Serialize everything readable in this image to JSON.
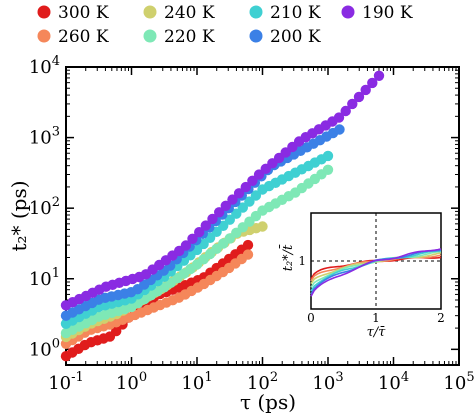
{
  "chart_data": {
    "type": "scatter",
    "xlabel": "τ (ps)",
    "ylabel": "t₂* (ps)",
    "xscale": "log",
    "yscale": "log",
    "xlim": [
      0.1,
      100000
    ],
    "ylim": [
      0.6,
      10000
    ],
    "xticks": [
      {
        "value": 0.1,
        "base": "10",
        "exp": "-1"
      },
      {
        "value": 1,
        "base": "10",
        "exp": "0"
      },
      {
        "value": 10,
        "base": "10",
        "exp": "1"
      },
      {
        "value": 100,
        "base": "10",
        "exp": "2"
      },
      {
        "value": 1000,
        "base": "10",
        "exp": "3"
      },
      {
        "value": 10000,
        "base": "10",
        "exp": "4"
      },
      {
        "value": 100000,
        "base": "10",
        "exp": "5"
      }
    ],
    "yticks": [
      {
        "value": 1,
        "base": "10",
        "exp": "0"
      },
      {
        "value": 10,
        "base": "10",
        "exp": "1"
      },
      {
        "value": 100,
        "base": "10",
        "exp": "2"
      },
      {
        "value": 1000,
        "base": "10",
        "exp": "3"
      },
      {
        "value": 10000,
        "base": "10",
        "exp": "4"
      }
    ],
    "legend_position": "top",
    "series": [
      {
        "name": "300 K",
        "color": "#e01c1c",
        "x_range": [
          0.1,
          60
        ],
        "y_start": 0.8,
        "y_end": 30
      },
      {
        "name": "260 K",
        "color": "#f5875a",
        "x_range": [
          0.1,
          60
        ],
        "y_start": 1.2,
        "y_end": 22
      },
      {
        "name": "240 K",
        "color": "#cfd06e",
        "x_range": [
          0.1,
          100
        ],
        "y_start": 1.5,
        "y_end": 55
      },
      {
        "name": "220 K",
        "color": "#7ee8b6",
        "x_range": [
          0.1,
          1000
        ],
        "y_start": 1.7,
        "y_end": 350
      },
      {
        "name": "210 K",
        "color": "#3fd0d2",
        "x_range": [
          0.1,
          1000
        ],
        "y_start": 2.3,
        "y_end": 550
      },
      {
        "name": "200 K",
        "color": "#3b80e6",
        "x_range": [
          0.1,
          1500
        ],
        "y_start": 3.0,
        "y_end": 1300
      },
      {
        "name": "190 K",
        "color": "#8a2be2",
        "x_range": [
          0.1,
          6000
        ],
        "y_start": 4.2,
        "y_end": 7500
      }
    ],
    "inset": {
      "xlabel": "τ/τ̄",
      "ylabel": "t₂*/t̄",
      "xlim": [
        0,
        2
      ],
      "ylim": [
        0,
        2
      ],
      "xticks": [
        "0",
        "1",
        "2"
      ],
      "yticks": [
        "1"
      ],
      "reference_lines": {
        "x": 1,
        "y": 1
      }
    }
  }
}
